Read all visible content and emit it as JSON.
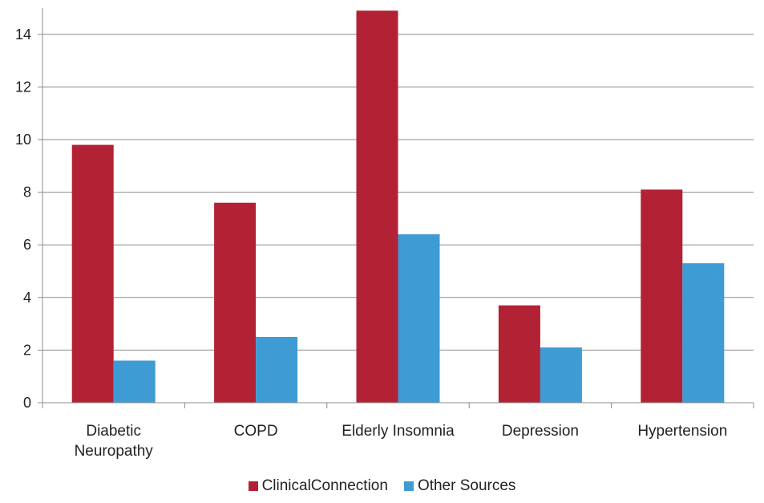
{
  "chart_data": {
    "type": "bar",
    "title": "",
    "xlabel": "",
    "ylabel": "",
    "categories": [
      [
        "Diabetic",
        "Neuropathy"
      ],
      [
        "COPD"
      ],
      [
        "Elderly Insomnia"
      ],
      [
        "Depression"
      ],
      [
        "Hypertension"
      ]
    ],
    "series": [
      {
        "name": "ClinicalConnection",
        "color": "#b22234",
        "values": [
          9.8,
          7.6,
          14.9,
          3.7,
          8.1
        ]
      },
      {
        "name": "Other Sources",
        "color": "#3e9bd4",
        "values": [
          1.6,
          2.5,
          6.4,
          2.1,
          5.3
        ]
      }
    ],
    "ylim": [
      0,
      15
    ],
    "yticks": [
      0,
      2,
      4,
      6,
      8,
      10,
      12,
      14
    ],
    "grid": true,
    "legend_position": "bottom"
  }
}
